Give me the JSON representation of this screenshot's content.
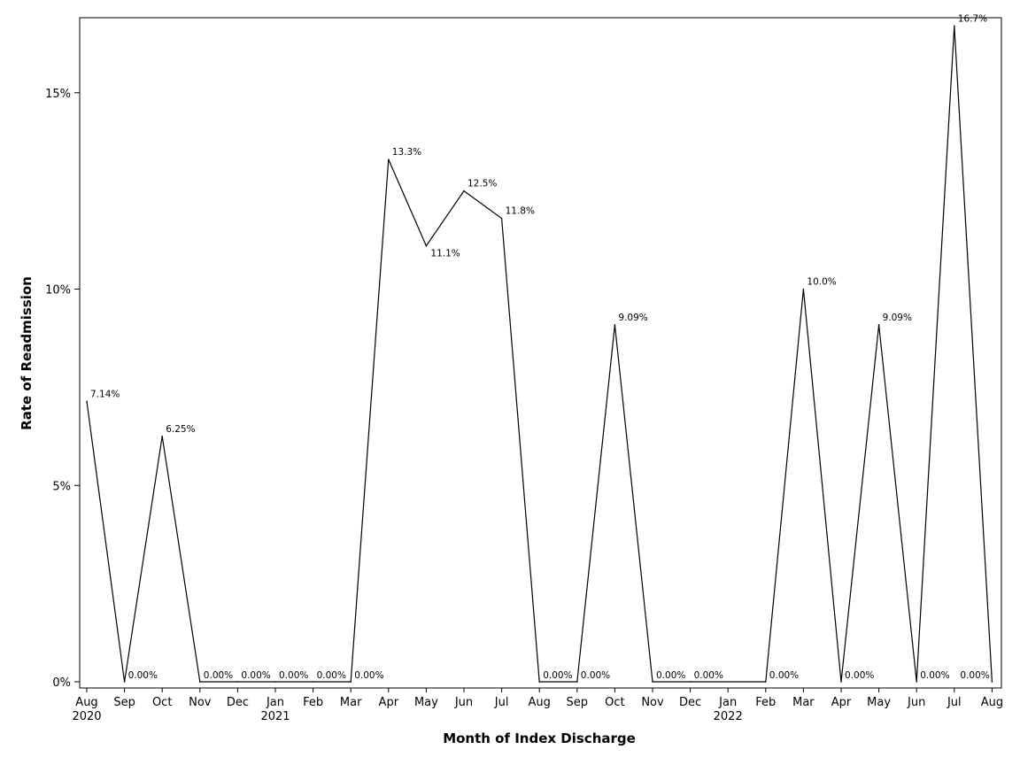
{
  "chart_data": {
    "type": "line",
    "title": "",
    "xlabel": "Month of Index Discharge",
    "ylabel": "Rate of Readmission",
    "ylim": [
      0,
      16.7
    ],
    "yticks": [
      {
        "value": 0,
        "label": "0%"
      },
      {
        "value": 5,
        "label": "5%"
      },
      {
        "value": 10,
        "label": "10%"
      },
      {
        "value": 15,
        "label": "15%"
      }
    ],
    "grid": false,
    "legend": "none",
    "line_color": "#000000",
    "x": [
      {
        "month": "Aug",
        "year": "2020"
      },
      {
        "month": "Sep",
        "year": ""
      },
      {
        "month": "Oct",
        "year": ""
      },
      {
        "month": "Nov",
        "year": ""
      },
      {
        "month": "Dec",
        "year": ""
      },
      {
        "month": "Jan",
        "year": "2021"
      },
      {
        "month": "Feb",
        "year": ""
      },
      {
        "month": "Mar",
        "year": ""
      },
      {
        "month": "Apr",
        "year": ""
      },
      {
        "month": "May",
        "year": ""
      },
      {
        "month": "Jun",
        "year": ""
      },
      {
        "month": "Jul",
        "year": ""
      },
      {
        "month": "Aug",
        "year": ""
      },
      {
        "month": "Sep",
        "year": ""
      },
      {
        "month": "Oct",
        "year": ""
      },
      {
        "month": "Nov",
        "year": ""
      },
      {
        "month": "Dec",
        "year": ""
      },
      {
        "month": "Jan",
        "year": "2022"
      },
      {
        "month": "Feb",
        "year": ""
      },
      {
        "month": "Mar",
        "year": ""
      },
      {
        "month": "Apr",
        "year": ""
      },
      {
        "month": "May",
        "year": ""
      },
      {
        "month": "Jun",
        "year": ""
      },
      {
        "month": "Jul",
        "year": ""
      },
      {
        "month": "Aug",
        "year": ""
      }
    ],
    "series": [
      {
        "values": [
          7.14,
          0,
          6.25,
          0,
          0,
          0,
          0,
          0,
          13.3,
          11.1,
          12.5,
          11.8,
          0,
          0,
          9.09,
          0,
          0,
          null,
          0,
          10.0,
          0,
          9.09,
          0,
          16.7,
          0
        ],
        "labels": [
          "7.14%",
          "0.00%",
          "6.25%",
          "0.00%",
          "0.00%",
          "0.00%",
          "0.00%",
          "0.00%",
          "13.3%",
          "11.1%",
          "12.5%",
          "11.8%",
          "0.00%",
          "0.00%",
          "9.09%",
          "0.00%",
          "0.00%",
          null,
          "0.00%",
          "10.0%",
          "0.00%",
          "9.09%",
          "0.00%",
          "16.7%",
          "0.00%"
        ]
      }
    ]
  }
}
